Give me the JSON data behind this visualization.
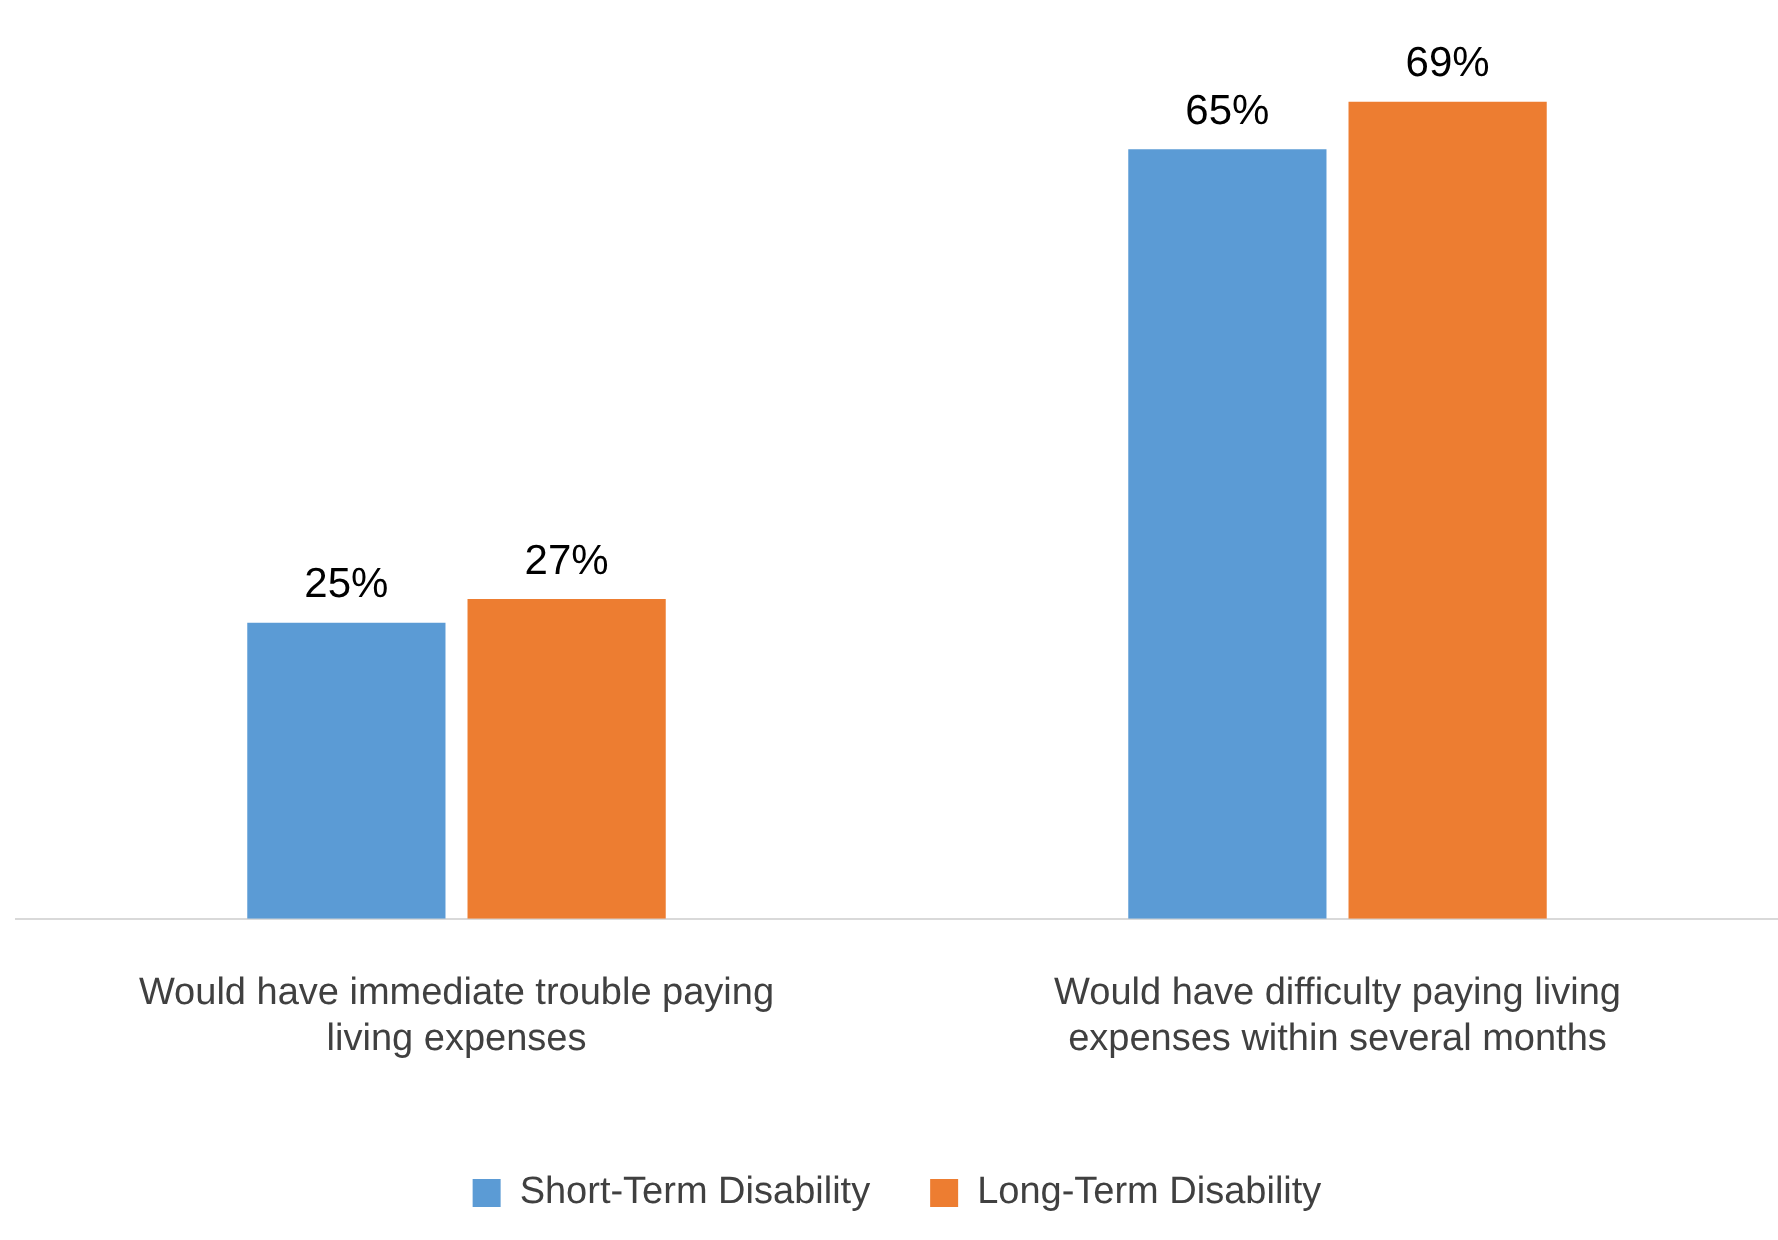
{
  "chart_data": {
    "type": "bar",
    "categories": [
      "Would have immediate trouble paying living expenses",
      "Would have difficulty paying living expenses within several months"
    ],
    "series": [
      {
        "name": "Short-Term Disability",
        "color": "#5b9bd5",
        "values": [
          25,
          65
        ],
        "value_labels": [
          "25%",
          "65%"
        ]
      },
      {
        "name": "Long-Term Disability",
        "color": "#ed7d31",
        "values": [
          27,
          69
        ],
        "value_labels": [
          "27%",
          "69%"
        ]
      }
    ],
    "grid": false,
    "legend": "bottom",
    "tick_labels": "x"
  }
}
